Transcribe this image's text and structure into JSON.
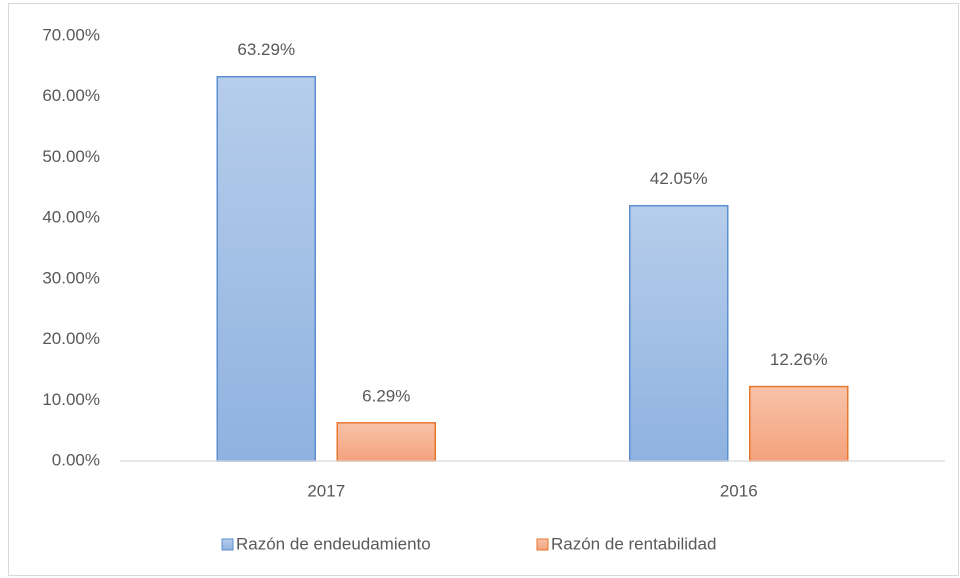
{
  "chart_data": {
    "type": "bar",
    "categories": [
      "2017",
      "2016"
    ],
    "series": [
      {
        "name": "Razón de endeudamiento",
        "color": "#8fb2e0",
        "edgecolor": "#5b8fd0",
        "values": [
          63.29,
          42.05
        ],
        "value_labels": [
          "63.29%",
          "42.05%"
        ]
      },
      {
        "name": "Razón de rentabilidad",
        "color": "#f4a27c",
        "edgecolor": "#e8772e",
        "values": [
          6.29,
          12.26
        ],
        "value_labels": [
          "6.29%",
          "12.26%"
        ]
      }
    ],
    "ylim": [
      0,
      70
    ],
    "yticks": [
      {
        "value": 0,
        "label": "0.00%"
      },
      {
        "value": 10,
        "label": "10.00%"
      },
      {
        "value": 20,
        "label": "20.00%"
      },
      {
        "value": 30,
        "label": "30.00%"
      },
      {
        "value": 40,
        "label": "40.00%"
      },
      {
        "value": 50,
        "label": "50.00%"
      },
      {
        "value": 60,
        "label": "60.00%"
      },
      {
        "value": 70,
        "label": "70.00%"
      }
    ],
    "grid": false,
    "legend": "bottom"
  }
}
